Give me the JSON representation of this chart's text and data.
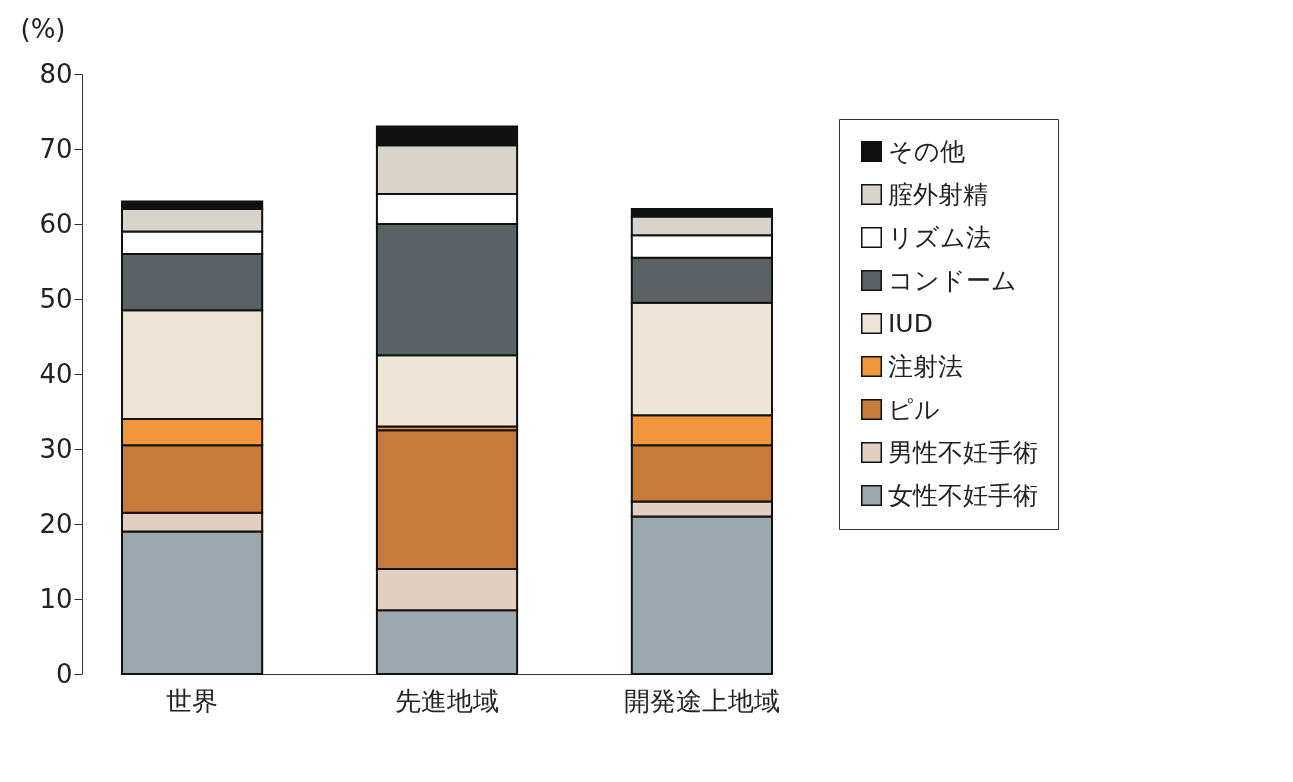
{
  "chart_data": {
    "type": "bar",
    "stacked": true,
    "ylabel": "(%)",
    "categories": [
      "世界",
      "先進地域",
      "開発途上地域"
    ],
    "ylim": [
      0,
      80
    ],
    "yticks": [
      0,
      10,
      20,
      30,
      40,
      50,
      60,
      70,
      80
    ],
    "grid": false,
    "legend": "right",
    "series": [
      {
        "name": "女性不妊手術",
        "color": "#9aa8ad",
        "values": [
          19,
          8.5,
          21
        ]
      },
      {
        "name": "男性不妊手術",
        "color": "#e2cfc0",
        "values": [
          2.5,
          5.5,
          2
        ]
      },
      {
        "name": "ピル",
        "color": "#c87a3a",
        "values": [
          9,
          18.5,
          7.5
        ]
      },
      {
        "name": "注射法",
        "color": "#f0963c",
        "values": [
          3.5,
          0.5,
          4
        ]
      },
      {
        "name": "IUD",
        "color": "#ede5d6",
        "values": [
          14.5,
          9.5,
          15
        ]
      },
      {
        "name": "コンドーム",
        "color": "#5a6266",
        "values": [
          7.5,
          17.5,
          6
        ]
      },
      {
        "name": "リズム法",
        "color": "#ffffff",
        "values": [
          3,
          4,
          3
        ]
      },
      {
        "name": "腟外射精",
        "color": "#d8d4cc",
        "values": [
          3,
          6.5,
          2.5
        ]
      },
      {
        "name": "その他",
        "color": "#111111",
        "values": [
          1,
          2.5,
          1
        ]
      }
    ]
  }
}
